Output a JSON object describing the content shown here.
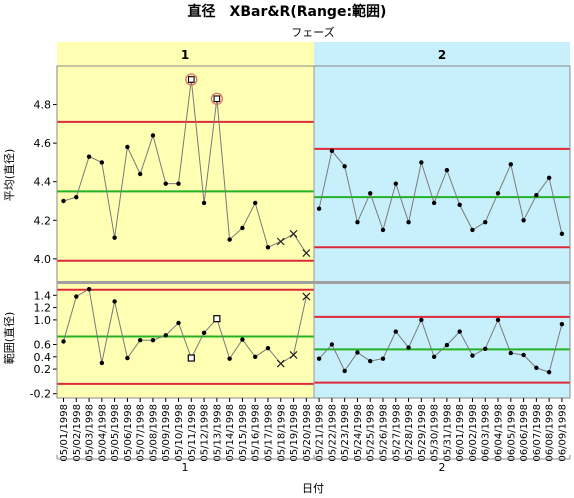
{
  "chart_data": {
    "type": "control_chart",
    "title": "直径　XBar&R(Range:範囲)",
    "phase_axis_label": "フェーズ",
    "phases": [
      "1",
      "2"
    ],
    "x_axis_label": "日付",
    "x_group_labels": [
      "1",
      "2"
    ],
    "dates": [
      "05/01/1998",
      "05/02/1998",
      "05/03/1998",
      "05/04/1998",
      "05/05/1998",
      "05/06/1998",
      "05/07/1998",
      "05/08/1998",
      "05/09/1998",
      "05/10/1998",
      "05/11/1998",
      "05/12/1998",
      "05/13/1998",
      "05/14/1998",
      "05/15/1998",
      "05/16/1998",
      "05/17/1998",
      "05/18/1998",
      "05/19/1998",
      "05/20/1998",
      "05/21/1998",
      "05/22/1998",
      "05/23/1998",
      "05/24/1998",
      "05/25/1998",
      "05/26/1998",
      "05/27/1998",
      "05/28/1998",
      "05/29/1998",
      "05/30/1998",
      "05/31/1998",
      "06/01/1998",
      "06/02/1998",
      "06/03/1998",
      "06/04/1998",
      "06/05/1998",
      "06/06/1998",
      "06/07/1998",
      "06/08/1998",
      "06/09/1998"
    ],
    "phase_of_point": [
      1,
      1,
      1,
      1,
      1,
      1,
      1,
      1,
      1,
      1,
      1,
      1,
      1,
      1,
      1,
      1,
      1,
      1,
      1,
      1,
      2,
      2,
      2,
      2,
      2,
      2,
      2,
      2,
      2,
      2,
      2,
      2,
      2,
      2,
      2,
      2,
      2,
      2,
      2,
      2
    ],
    "colors": {
      "phase1_bg": "#ffffb3",
      "phase2_bg": "#c8f0fc",
      "limit_line": "#dd2a3a",
      "center_line": "#22b322",
      "data_line": "#7a7a7a",
      "point": "#000000",
      "flag_circle": "#e07070"
    },
    "xbar_chart": {
      "y_label": "平均(直径)",
      "y_ticks": [
        4.0,
        4.2,
        4.4,
        4.6,
        4.8
      ],
      "y_range": [
        3.88,
        5.0
      ],
      "values": [
        4.3,
        4.32,
        4.53,
        4.5,
        4.11,
        4.58,
        4.44,
        4.64,
        4.39,
        4.39,
        4.93,
        4.29,
        4.83,
        4.1,
        4.16,
        4.29,
        4.06,
        4.09,
        4.13,
        4.03,
        4.26,
        4.56,
        4.48,
        4.19,
        4.34,
        4.15,
        4.39,
        4.19,
        4.5,
        4.29,
        4.46,
        4.28,
        4.15,
        4.19,
        4.34,
        4.49,
        4.2,
        4.33,
        4.42,
        4.13
      ],
      "markers": [
        "dot",
        "dot",
        "dot",
        "dot",
        "dot",
        "dot",
        "dot",
        "dot",
        "dot",
        "dot",
        "flag",
        "dot",
        "flag",
        "dot",
        "dot",
        "dot",
        "dot",
        "x",
        "x",
        "x",
        "dot",
        "dot",
        "dot",
        "dot",
        "dot",
        "dot",
        "dot",
        "dot",
        "dot",
        "dot",
        "dot",
        "dot",
        "dot",
        "dot",
        "dot",
        "dot",
        "dot",
        "dot",
        "dot",
        "dot"
      ],
      "limits": [
        {
          "phase": "1",
          "ucl": 4.71,
          "center": 4.35,
          "lcl": 3.99
        },
        {
          "phase": "2",
          "ucl": 4.57,
          "center": 4.32,
          "lcl": 4.06
        }
      ]
    },
    "range_chart": {
      "y_label": "範囲(直径)",
      "y_ticks": [
        -0.2,
        0.2,
        0.4,
        0.6,
        1.0,
        1.2,
        1.4
      ],
      "y_range": [
        -0.27,
        1.6
      ],
      "values": [
        0.65,
        1.38,
        1.5,
        0.3,
        1.3,
        0.38,
        0.67,
        0.67,
        0.75,
        0.95,
        0.38,
        0.79,
        1.02,
        0.37,
        0.68,
        0.4,
        0.54,
        0.29,
        0.43,
        1.38,
        0.37,
        0.6,
        0.17,
        0.47,
        0.33,
        0.37,
        0.81,
        0.55,
        1.0,
        0.4,
        0.59,
        0.81,
        0.42,
        0.53,
        1.0,
        0.46,
        0.43,
        0.22,
        0.15,
        0.93
      ],
      "markers": [
        "dot",
        "dot",
        "dot",
        "dot",
        "dot",
        "dot",
        "dot",
        "dot",
        "dot",
        "dot",
        "square",
        "dot",
        "square",
        "dot",
        "dot",
        "dot",
        "dot",
        "x",
        "x",
        "x",
        "dot",
        "dot",
        "dot",
        "dot",
        "dot",
        "dot",
        "dot",
        "dot",
        "dot",
        "dot",
        "dot",
        "dot",
        "dot",
        "dot",
        "dot",
        "dot",
        "dot",
        "dot",
        "dot",
        "dot"
      ],
      "limits": [
        {
          "phase": "1",
          "ucl": 1.49,
          "center": 0.73,
          "lcl": -0.04
        },
        {
          "phase": "2",
          "ucl": 1.05,
          "center": 0.52,
          "lcl": -0.02
        }
      ]
    }
  }
}
